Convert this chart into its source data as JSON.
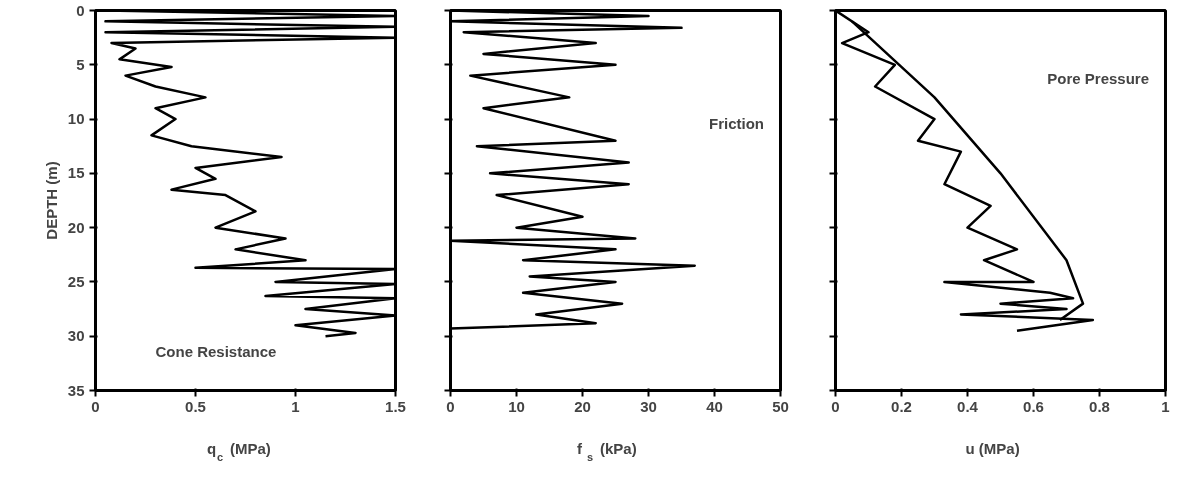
{
  "chart_data": [
    {
      "type": "line",
      "xlabel": "q$_{c}$ (MPa)",
      "ylabel": "DEPTH (m)",
      "xlim": [
        0,
        1.5
      ],
      "xticks": [
        0,
        0.5,
        1,
        1.5
      ],
      "ylim": [
        35,
        0
      ],
      "yticks": [
        0,
        5,
        10,
        15,
        20,
        25,
        30,
        35
      ],
      "grid": false,
      "marker": "none",
      "line_style": "solid",
      "annotations": [
        "Cone Resistance"
      ],
      "series": [
        {
          "color": "#000000",
          "x": [
            0.05,
            1.5,
            0.05,
            1.5,
            0.05,
            1.5,
            0.08,
            0.2,
            0.12,
            0.38,
            0.15,
            0.3,
            0.55,
            0.3,
            0.4,
            0.28,
            0.48,
            0.93,
            0.5,
            0.6,
            0.38,
            0.65,
            0.8,
            0.6,
            0.95,
            0.7,
            1.05,
            0.5,
            1.5,
            0.9,
            1.5,
            0.85,
            1.5,
            1.05,
            1.5,
            1.0,
            1.3,
            1.15
          ],
          "values": [
            0,
            0.5,
            1,
            1.5,
            2,
            2.5,
            3,
            3.5,
            4.5,
            5.2,
            6,
            7,
            8,
            9,
            10,
            11.5,
            12.5,
            13.5,
            14.5,
            15.5,
            16.5,
            17,
            18.5,
            20,
            21,
            22,
            23,
            23.7,
            23.8,
            25,
            25.2,
            26.3,
            26.5,
            27.5,
            28.1,
            29,
            29.7,
            30
          ]
        }
      ]
    },
    {
      "type": "line",
      "xlabel": "f$_{s}$ (kPa)",
      "xlim": [
        0,
        50
      ],
      "xticks": [
        0,
        10,
        20,
        30,
        40,
        50
      ],
      "ylim": [
        35,
        0
      ],
      "yticks": [
        0,
        5,
        10,
        15,
        20,
        25,
        30,
        35
      ],
      "tick_labels": "x",
      "grid": false,
      "marker": "none",
      "line_style": "solid",
      "annotations": [
        "Friction"
      ],
      "series": [
        {
          "color": "#000000",
          "x": [
            0,
            30,
            0,
            35,
            2,
            22,
            5,
            25,
            3,
            18,
            5,
            25,
            4,
            27,
            6,
            27,
            7,
            20,
            10,
            28,
            0,
            25,
            11,
            37,
            12,
            25,
            11,
            26,
            13,
            22,
            0
          ],
          "values": [
            0,
            0.5,
            1,
            1.6,
            2,
            3,
            4,
            5,
            6,
            8,
            9,
            12,
            12.5,
            14,
            15,
            16,
            17,
            19,
            20,
            21,
            21.2,
            22,
            23,
            23.5,
            24.5,
            25,
            26,
            27,
            28,
            28.8,
            29.3
          ]
        }
      ]
    },
    {
      "type": "line",
      "xlabel": "u (MPa)",
      "xlim": [
        0,
        1
      ],
      "xticks": [
        0,
        0.2,
        0.4,
        0.6,
        0.8,
        1
      ],
      "ylim": [
        35,
        0
      ],
      "yticks": [
        0,
        5,
        10,
        15,
        20,
        25,
        30,
        35
      ],
      "tick_labels": "x",
      "grid": false,
      "marker": "none",
      "line_style": "solid",
      "annotations": [
        "Pore Pressure"
      ],
      "series": [
        {
          "color": "#000000",
          "x": [
            0,
            0.1,
            0.02,
            0.18,
            0.12,
            0.3,
            0.25,
            0.38,
            0.33,
            0.47,
            0.4,
            0.55,
            0.45,
            0.6,
            0.33,
            0.65,
            0.72,
            0.5,
            0.7,
            0.38,
            0.78,
            0.55
          ],
          "values": [
            0,
            2,
            3,
            5,
            7,
            10,
            12,
            13,
            16,
            18,
            20,
            22,
            23,
            25,
            25,
            26,
            26.5,
            27,
            27.5,
            28,
            28.5,
            29.5
          ]
        },
        {
          "color": "#000000",
          "x": [
            0.05,
            0.3,
            0.5,
            0.7,
            0.75,
            0.68
          ],
          "values": [
            1,
            8,
            15,
            23,
            27,
            28.5
          ]
        }
      ]
    }
  ]
}
